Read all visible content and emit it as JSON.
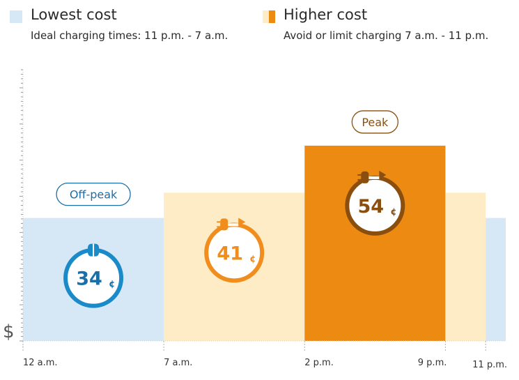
{
  "legend": {
    "low": {
      "title": "Lowest cost",
      "subtitle": "Ideal charging times: 11 p.m. - 7 a.m.",
      "color": "#d6e7f5"
    },
    "high": {
      "title": "Higher cost",
      "subtitle": "Avoid or limit charging 7 a.m. - 11 p.m.",
      "color": "#ec8a12",
      "light_color": "#fdecc6"
    }
  },
  "ylabel": "$",
  "chart_data": {
    "type": "bar",
    "ylabel": "$",
    "xlim": [
      0,
      24
    ],
    "ylim": [
      0,
      75
    ],
    "x_ticks": [
      {
        "hour": 0,
        "label": "12 a.m."
      },
      {
        "hour": 7,
        "label": "7 a.m."
      },
      {
        "hour": 14,
        "label": "2 p.m."
      },
      {
        "hour": 21,
        "label": "9 p.m."
      },
      {
        "hour": 23,
        "label": "11 p.m."
      }
    ],
    "segments": [
      {
        "start": 0,
        "end": 7,
        "value": 34,
        "tier": "Off-peak",
        "color": "#d6e7f5"
      },
      {
        "start": 7,
        "end": 14,
        "value": 41,
        "tier": "",
        "color": "#fdecc6"
      },
      {
        "start": 14,
        "end": 21,
        "value": 54,
        "tier": "Peak",
        "color": "#ec8a12"
      },
      {
        "start": 21,
        "end": 23,
        "value": 41,
        "tier": "",
        "color": "#fdecc6"
      },
      {
        "start": 23,
        "end": 24,
        "value": 34,
        "tier": "",
        "color": "#d6e7f5"
      }
    ],
    "price_badges": [
      {
        "segment": 0,
        "value": "34",
        "unit": "¢",
        "color": "#1a8ac9",
        "text_color": "#1b6fa8",
        "icon": "plug-connected-icon"
      },
      {
        "segment": 1,
        "value": "41",
        "unit": "¢",
        "color": "#f08d1d",
        "text_color": "#f08d1d",
        "icon": "plug-disconnected-icon"
      },
      {
        "segment": 2,
        "value": "54",
        "unit": "¢",
        "color": "#8a4f0f",
        "text_color": "#8a4f0f",
        "icon": "plug-disconnected-icon"
      }
    ],
    "tier_labels": [
      {
        "segment": 0,
        "text": "Off-peak",
        "color": "#1b6fa8"
      },
      {
        "segment": 2,
        "text": "Peak",
        "color": "#8a4f0f"
      }
    ]
  }
}
